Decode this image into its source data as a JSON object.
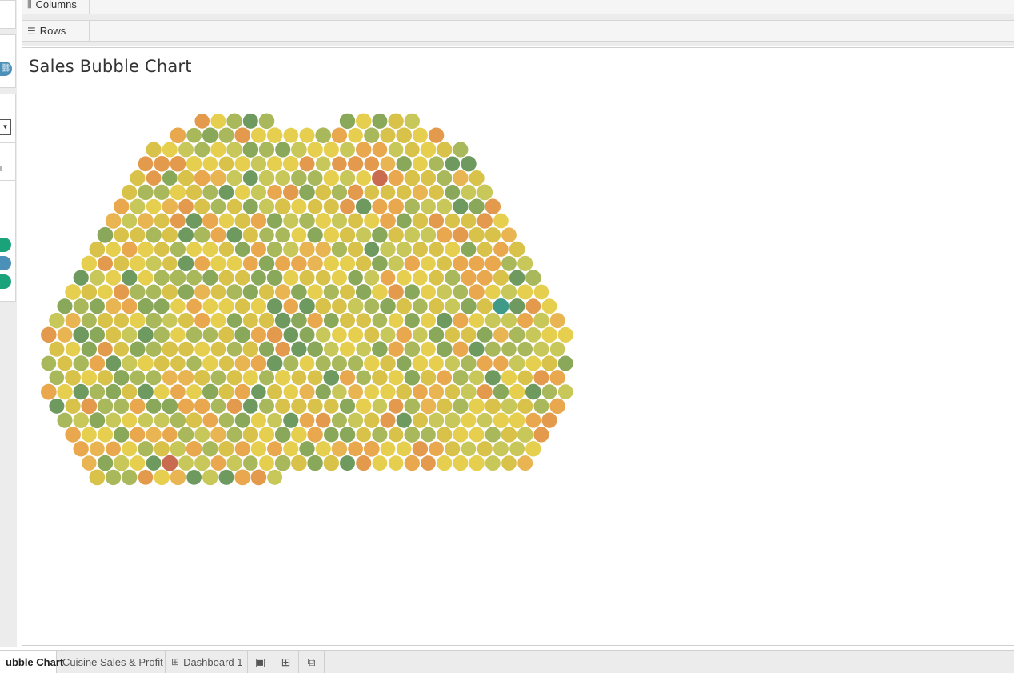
{
  "shelves": {
    "columns_label": "Columns",
    "rows_label": "Rows",
    "columns_icon": "columns-icon",
    "rows_icon": "rows-icon"
  },
  "left_panel": {
    "stub_text": "l",
    "pill_colors": [
      "#1aa37a",
      "#4a90b8",
      "#1aa37a"
    ]
  },
  "view": {
    "title": "Sales Bubble Chart"
  },
  "chart_data": {
    "type": "bubble",
    "title": "Sales Bubble Chart",
    "bubble_count": 690,
    "colors": [
      "#d8c24a",
      "#e6cf4e",
      "#c8c75a",
      "#a9b85a",
      "#8aa85a",
      "#6f9a5f",
      "#e9a84e",
      "#e39a4c",
      "#e8b552",
      "#c96b4e",
      "#3f9a88"
    ],
    "color_weights": [
      20,
      18,
      12,
      12,
      9,
      6,
      11,
      6,
      5,
      0.35,
      0.35
    ]
  },
  "tabs": [
    {
      "label": "ubble Chart",
      "active": true
    },
    {
      "label": "Cuisine Sales & Profit",
      "active": false
    },
    {
      "label": "Dashboard 1",
      "active": false
    }
  ],
  "tab_actions": [
    {
      "icon": "new-worksheet-icon"
    },
    {
      "icon": "new-dashboard-icon"
    },
    {
      "icon": "new-story-icon"
    }
  ]
}
